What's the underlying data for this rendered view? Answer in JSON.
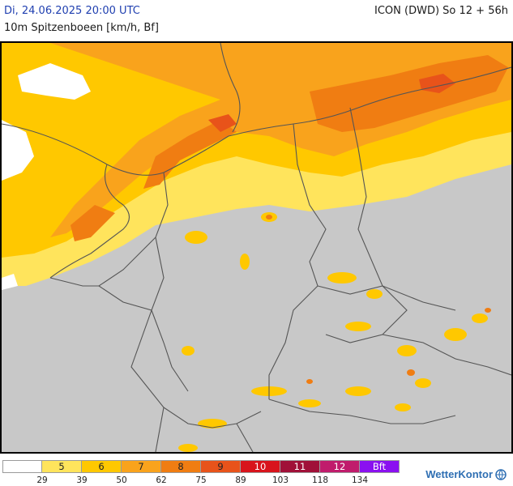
{
  "header": {
    "datetime": "Di, 24.06.2025 20:00 UTC",
    "model": "ICON (DWD) So 12 + 56h",
    "parameter": "10m Spitzenboeen [km/h, Bf]"
  },
  "legend": {
    "segments": [
      {
        "label": "",
        "color": "#ffffff"
      },
      {
        "label": "5",
        "color": "#ffe45c"
      },
      {
        "label": "6",
        "color": "#ffc800"
      },
      {
        "label": "7",
        "color": "#f9a31c"
      },
      {
        "label": "8",
        "color": "#f07d12"
      },
      {
        "label": "9",
        "color": "#e8531a"
      },
      {
        "label": "10",
        "color": "#d8141c"
      },
      {
        "label": "11",
        "color": "#a01038"
      },
      {
        "label": "12",
        "color": "#c01c6c"
      },
      {
        "label": "Bft",
        "color": "#8a10f0"
      }
    ],
    "ticks": [
      "29",
      "39",
      "50",
      "62",
      "75",
      "89",
      "103",
      "118",
      "134"
    ]
  },
  "brand": {
    "name": "WetterKontor",
    "color": "#2f6fb3"
  },
  "colors": {
    "land": "#c8c8c8",
    "border": "#555555",
    "frame": "#000000"
  }
}
